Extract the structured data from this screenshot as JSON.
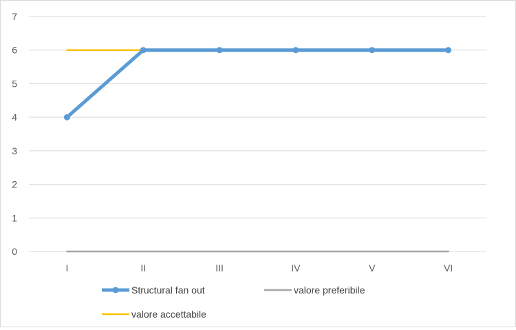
{
  "chart_data": {
    "type": "line",
    "title": "",
    "xlabel": "",
    "ylabel": "",
    "categories": [
      "I",
      "II",
      "III",
      "IV",
      "V",
      "VI"
    ],
    "ylim": [
      0,
      7
    ],
    "yticks": [
      "0",
      "1",
      "2",
      "3",
      "4",
      "5",
      "6",
      "7"
    ],
    "grid": "horizontal",
    "legend_position": "bottom",
    "series": [
      {
        "name": "Structural fan out",
        "values": [
          4,
          6,
          6,
          6,
          6,
          6
        ],
        "color": "#5b9bd5",
        "markers": true
      },
      {
        "name": "valore preferibile",
        "values": [
          0,
          0,
          0,
          0,
          0,
          0
        ],
        "color": "#a5a5a5",
        "markers": false
      },
      {
        "name": "valore accettabile",
        "values": [
          6,
          6,
          6,
          6,
          6,
          6
        ],
        "color": "#ffc000",
        "markers": false
      }
    ]
  }
}
